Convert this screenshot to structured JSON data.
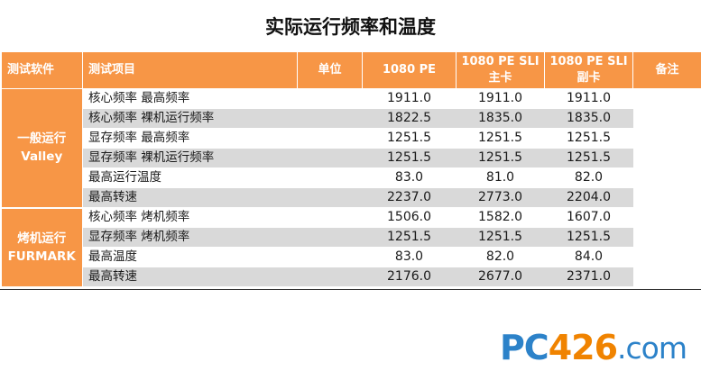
{
  "title": "实际运行频率和温度",
  "headers": {
    "software": "测试软件",
    "item": "测试项目",
    "unit": "单位",
    "c1080pe": "1080 PE",
    "sli_master_line1": "1080 PE SLI",
    "sli_master_line2": "主卡",
    "sli_slave_line1": "1080 PE SLI",
    "sli_slave_line2": "副卡",
    "notes": "备注"
  },
  "groups": [
    {
      "line1": "一般运行",
      "line2": "Valley",
      "rows": [
        {
          "item": "核心频率 最高频率",
          "v1": "1911.0",
          "v2": "1911.0",
          "v3": "1911.0"
        },
        {
          "item": "核心频率 裸机运行频率",
          "v1": "1822.5",
          "v2": "1835.0",
          "v3": "1835.0"
        },
        {
          "item": "显存频率 最高频率",
          "v1": "1251.5",
          "v2": "1251.5",
          "v3": "1251.5"
        },
        {
          "item": "显存频率 裸机运行频率",
          "v1": "1251.5",
          "v2": "1251.5",
          "v3": "1251.5"
        },
        {
          "item": "最高运行温度",
          "v1": "83.0",
          "v2": "81.0",
          "v3": "82.0"
        },
        {
          "item": "最高转速",
          "v1": "2237.0",
          "v2": "2773.0",
          "v3": "2204.0"
        }
      ]
    },
    {
      "line1": "烤机运行",
      "line2": "FURMARK",
      "rows": [
        {
          "item": "核心频率 烤机频率",
          "v1": "1506.0",
          "v2": "1582.0",
          "v3": "1607.0"
        },
        {
          "item": "显存频率 烤机频率",
          "v1": "1251.5",
          "v2": "1251.5",
          "v3": "1251.5"
        },
        {
          "item": "最高温度",
          "v1": "83.0",
          "v2": "82.0",
          "v3": "84.0"
        },
        {
          "item": "最高转速",
          "v1": "2176.0",
          "v2": "2677.0",
          "v3": "2371.0"
        }
      ]
    }
  ],
  "watermark": {
    "pc": "PC",
    "num": "426",
    "dom": ".com"
  },
  "colors": {
    "header": "#f79646",
    "stripe": "#d9d9d9",
    "brand_blue": "#2c82c9",
    "brand_orange": "#f08300"
  }
}
